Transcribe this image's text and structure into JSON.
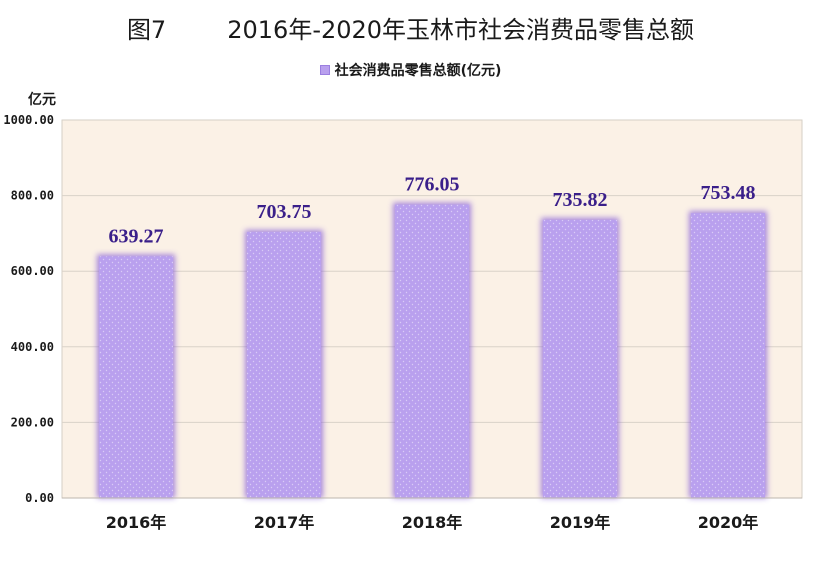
{
  "chart_data": {
    "type": "bar",
    "title": "图7        2016年-2020年玉林市社会消费品零售总额",
    "ylabel": "亿元",
    "xlabel": "",
    "categories": [
      "2016年",
      "2017年",
      "2018年",
      "2019年",
      "2020年"
    ],
    "series": [
      {
        "name": "社会消费品零售总额(亿元)",
        "values": [
          639.27,
          703.75,
          776.05,
          735.82,
          753.48
        ]
      }
    ],
    "data_labels": [
      "639.27",
      "703.75",
      "776.05",
      "735.82",
      "753.48"
    ],
    "ylim": [
      0,
      1000
    ],
    "yticks": [
      0,
      200,
      400,
      600,
      800,
      1000
    ],
    "ytick_labels": [
      "0.00",
      "200.00",
      "400.00",
      "600.00",
      "800.00",
      "1000.00"
    ],
    "grid": true,
    "legend_position": "top-center",
    "colors": {
      "plot_background": "#fbf1e6",
      "bar_fill": "#b9a0ee",
      "bar_glow": "#8a63d8",
      "data_label": "#3a1f8a",
      "gridline": "#d9d2c8"
    }
  }
}
